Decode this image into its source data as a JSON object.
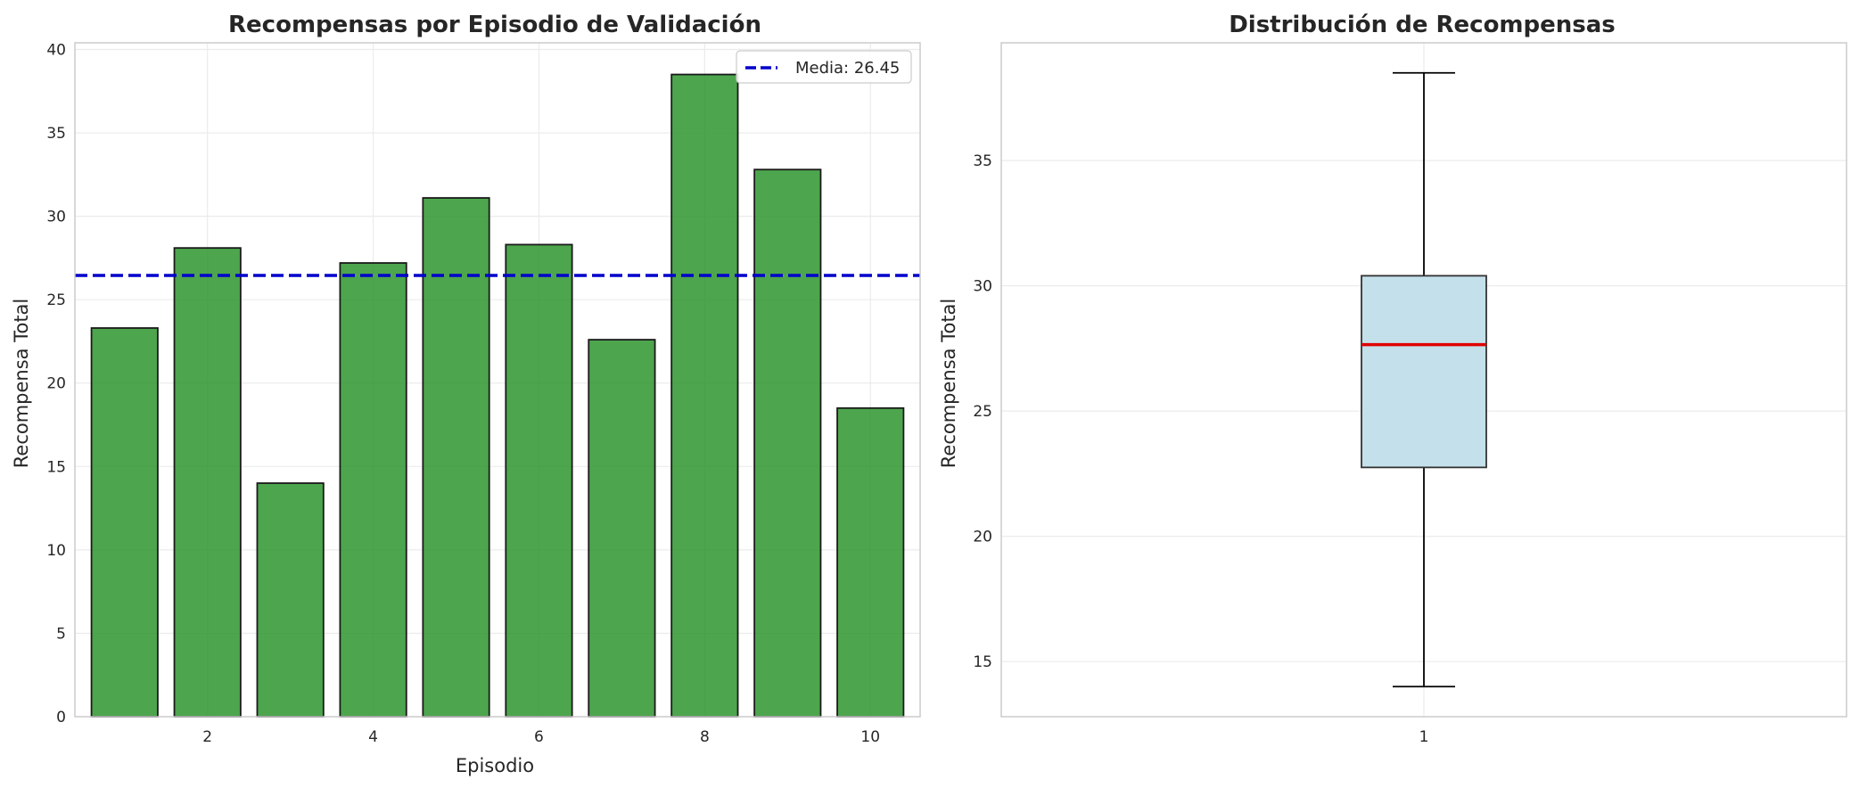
{
  "colors": {
    "bar_fill": "#2e952e",
    "bar_edge": "#1a1a1a",
    "mean_line": "#0000cc",
    "box_fill": "#c4e1eb",
    "median_line": "#e00000",
    "grid": "#ebebeb",
    "spine": "#cccccc"
  },
  "chart_data": [
    {
      "type": "bar",
      "title": "Recompensas por Episodio de Validación",
      "xlabel": "Episodio",
      "ylabel": "Recompensa Total",
      "x": [
        1,
        2,
        3,
        4,
        5,
        6,
        7,
        8,
        9,
        10
      ],
      "values": [
        23.3,
        28.1,
        14.0,
        27.2,
        31.1,
        28.3,
        22.6,
        38.5,
        32.8,
        18.5
      ],
      "xlim": [
        0.4,
        10.6
      ],
      "ylim": [
        0,
        40.4
      ],
      "xticks": [
        2,
        4,
        6,
        8,
        10
      ],
      "yticks": [
        0,
        5,
        10,
        15,
        20,
        25,
        30,
        35,
        40
      ],
      "mean": 26.45,
      "legend": "Media: 26.45",
      "legend_position": "top-right",
      "grid": true
    },
    {
      "type": "box",
      "title": "Distribución de Recompensas",
      "xlabel": "",
      "ylabel": "Recompensa Total",
      "categories": [
        "1"
      ],
      "whisker_low": 14.0,
      "q1": 22.75,
      "median": 27.65,
      "q3": 30.4,
      "whisker_high": 38.5,
      "ylim": [
        12.8,
        39.7
      ],
      "yticks": [
        15,
        20,
        25,
        30,
        35
      ],
      "grid": true
    }
  ]
}
